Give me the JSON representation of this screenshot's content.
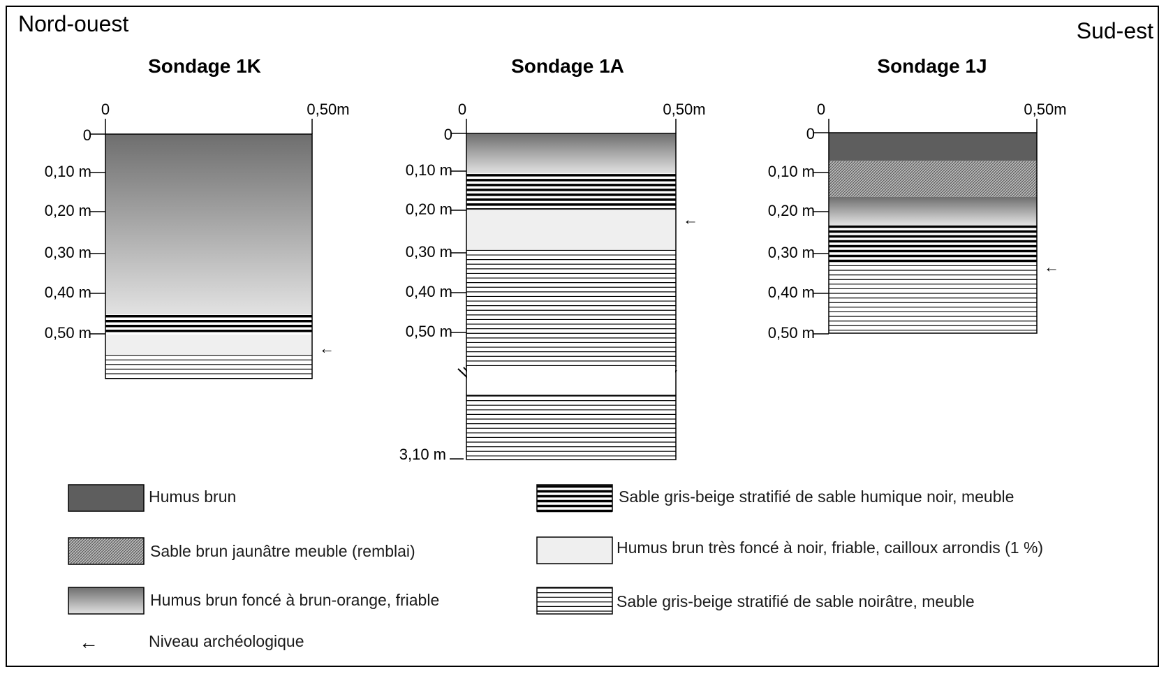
{
  "orientation": {
    "left": "Nord-ouest",
    "right": "Sud-est"
  },
  "scale": {
    "start": "0",
    "end": "0,50m"
  },
  "colors": {
    "humus_brun": "#5e5e5e",
    "remblai_base": "#c8c8c8",
    "gradient_top": "#6e6e6e",
    "gradient_bottom": "#e2e2e2",
    "light_fill": "#efefef"
  },
  "soundings": [
    {
      "title": "Sondage 1K",
      "depth_labels": [
        "0",
        "0,10 m",
        "0,20 m",
        "0,30 m",
        "0,40 m",
        "0,50 m"
      ],
      "layers": [
        {
          "type": "gradient",
          "from_m": 0.0,
          "to_m": 0.45
        },
        {
          "type": "thick_lines",
          "from_m": 0.45,
          "to_m": 0.5
        },
        {
          "type": "light",
          "from_m": 0.5,
          "to_m": 0.55
        },
        {
          "type": "thin_lines",
          "from_m": 0.55,
          "to_m": 0.61
        }
      ],
      "arch_level_m": 0.53
    },
    {
      "title": "Sondage 1A",
      "depth_labels": [
        "0",
        "0,10 m",
        "0,20 m",
        "0,30 m",
        "0,40 m",
        "0,50 m"
      ],
      "bottom_label": "3,10 m",
      "layers": [
        {
          "type": "gradient",
          "from_m": 0.0,
          "to_m": 0.1
        },
        {
          "type": "thick_lines",
          "from_m": 0.1,
          "to_m": 0.19
        },
        {
          "type": "light",
          "from_m": 0.19,
          "to_m": 0.29
        },
        {
          "type": "thin_lines",
          "from_m": 0.29,
          "to_m": 0.58
        }
      ],
      "arch_level_m": 0.21
    },
    {
      "title": "Sondage 1J",
      "depth_labels": [
        "0",
        "0,10 m",
        "0,20 m",
        "0,30 m",
        "0,40 m",
        "0,50 m"
      ],
      "layers": [
        {
          "type": "dark",
          "from_m": 0.0,
          "to_m": 0.07
        },
        {
          "type": "hatched",
          "from_m": 0.07,
          "to_m": 0.16
        },
        {
          "type": "gradient",
          "from_m": 0.16,
          "to_m": 0.23
        },
        {
          "type": "thick_lines",
          "from_m": 0.23,
          "to_m": 0.33
        },
        {
          "type": "thin_lines",
          "from_m": 0.33,
          "to_m": 0.5
        }
      ],
      "arch_level_m": 0.33
    }
  ],
  "legend": [
    {
      "type": "dark",
      "label": "Humus brun"
    },
    {
      "type": "hatched",
      "label": "Sable brun jaunâtre meuble (remblai)"
    },
    {
      "type": "gradient",
      "label": "Humus brun foncé à brun-orange, friable"
    },
    {
      "type": "arrow",
      "label": "Niveau archéologique",
      "symbol": "←"
    },
    {
      "type": "thick_lines",
      "label": "Sable gris-beige stratifié de sable humique noir, meuble"
    },
    {
      "type": "light",
      "label": "Humus brun très foncé à noir, friable, cailloux arrondis (1 %)"
    },
    {
      "type": "thin_lines",
      "label": "Sable gris-beige stratifié de sable noirâtre, meuble"
    }
  ]
}
